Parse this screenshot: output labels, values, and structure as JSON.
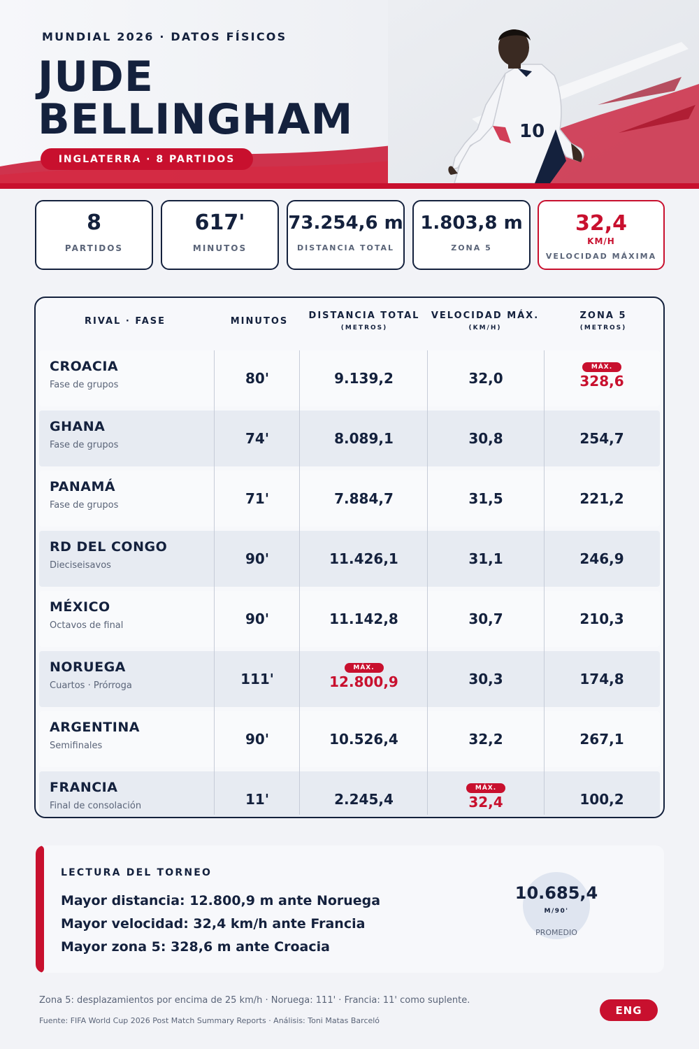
{
  "header": {
    "kicker": "MUNDIAL 2026 · DATOS FÍSICOS",
    "name_line1": "JUDE",
    "name_line2": "BELLINGHAM",
    "team_pill": "INGLATERRA · 8 PARTIDOS",
    "jersey_number": "10"
  },
  "kpis": [
    {
      "value": "8",
      "label": "PARTIDOS"
    },
    {
      "value": "617'",
      "label": "MINUTOS"
    },
    {
      "value": "73.254,6 m",
      "label": "DISTANCIA TOTAL"
    },
    {
      "value": "1.803,8 m",
      "label": "ZONA 5"
    },
    {
      "value": "32,4",
      "unit": "KM/H",
      "label": "VELOCIDAD MÁXIMA"
    }
  ],
  "table": {
    "headers": {
      "rival": "RIVAL · FASE",
      "minutos": "MINUTOS",
      "distancia": "DISTANCIA TOTAL",
      "distancia_unit": "(METROS)",
      "velocidad": "VELOCIDAD MÁX.",
      "velocidad_unit": "(KM/H)",
      "zona5": "ZONA 5",
      "zona5_unit": "(METROS)"
    },
    "max_badge": "MÁX.",
    "rows": [
      {
        "rival": "CROACIA",
        "fase": "Fase de grupos",
        "minutos": "80'",
        "distancia": "9.139,2",
        "velocidad": "32,0",
        "zona5": "328,6"
      },
      {
        "rival": "GHANA",
        "fase": "Fase de grupos",
        "minutos": "74'",
        "distancia": "8.089,1",
        "velocidad": "30,8",
        "zona5": "254,7"
      },
      {
        "rival": "PANAMÁ",
        "fase": "Fase de grupos",
        "minutos": "71'",
        "distancia": "7.884,7",
        "velocidad": "31,5",
        "zona5": "221,2"
      },
      {
        "rival": "RD DEL CONGO",
        "fase": "Dieciseisavos",
        "minutos": "90'",
        "distancia": "11.426,1",
        "velocidad": "31,1",
        "zona5": "246,9"
      },
      {
        "rival": "MÉXICO",
        "fase": "Octavos de final",
        "minutos": "90'",
        "distancia": "11.142,8",
        "velocidad": "30,7",
        "zona5": "210,3"
      },
      {
        "rival": "NORUEGA",
        "fase": "Cuartos · Prórroga",
        "minutos": "111'",
        "distancia": "12.800,9",
        "velocidad": "30,3",
        "zona5": "174,8"
      },
      {
        "rival": "ARGENTINA",
        "fase": "Semifinales",
        "minutos": "90'",
        "distancia": "10.526,4",
        "velocidad": "32,2",
        "zona5": "267,1"
      },
      {
        "rival": "FRANCIA",
        "fase": "Final de consolación",
        "minutos": "11'",
        "distancia": "2.245,4",
        "velocidad": "32,4",
        "zona5": "100,2"
      }
    ]
  },
  "summary": {
    "title": "LECTURA DEL TORNEO",
    "lines": [
      "Mayor distancia: 12.800,9 m ante Noruega",
      "Mayor velocidad: 32,4 km/h ante Francia",
      "Mayor zona 5: 328,6 m ante Croacia"
    ],
    "average_value": "10.685,4",
    "average_unit": "M/90'",
    "average_label": "PROMEDIO"
  },
  "footer": {
    "note": "Zona 5: desplazamientos por encima de 25 km/h · Noruega: 111' · Francia: 11' como suplente.",
    "source": "Fuente: FIFA World Cup 2026 Post Match Summary Reports · Análisis: Toni Matas Barceló",
    "lang_button": "ENG"
  },
  "colors": {
    "accent": "#c8102e",
    "navy": "#14213d",
    "muted": "#5a6478",
    "row_alt": "#e7ebf2"
  }
}
